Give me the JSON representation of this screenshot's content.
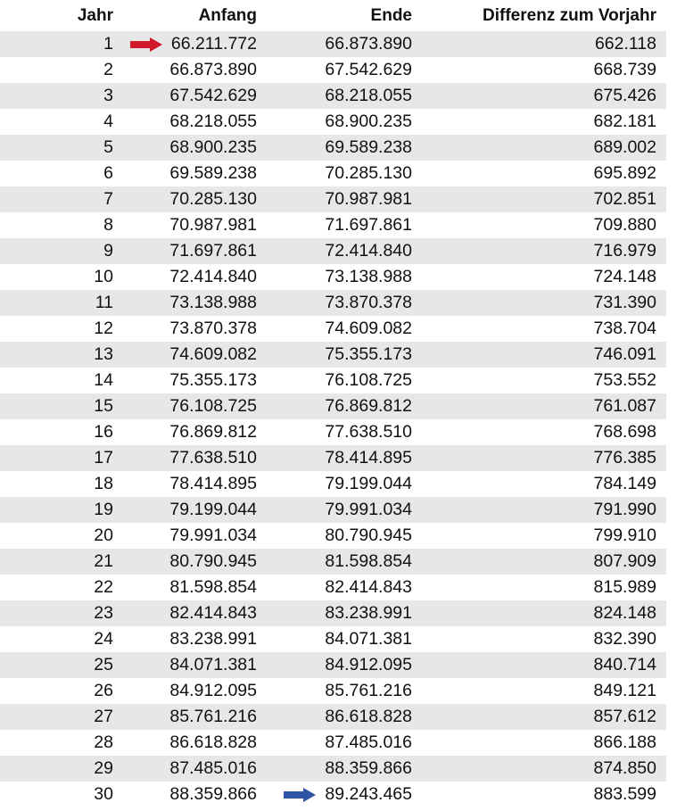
{
  "table": {
    "headers": [
      "Jahr",
      "Anfang",
      "Ende",
      "Differenz zum Vorjahr"
    ],
    "rows": [
      [
        "1",
        "66.211.772",
        "66.873.890",
        "662.118"
      ],
      [
        "2",
        "66.873.890",
        "67.542.629",
        "668.739"
      ],
      [
        "3",
        "67.542.629",
        "68.218.055",
        "675.426"
      ],
      [
        "4",
        "68.218.055",
        "68.900.235",
        "682.181"
      ],
      [
        "5",
        "68.900.235",
        "69.589.238",
        "689.002"
      ],
      [
        "6",
        "69.589.238",
        "70.285.130",
        "695.892"
      ],
      [
        "7",
        "70.285.130",
        "70.987.981",
        "702.851"
      ],
      [
        "8",
        "70.987.981",
        "71.697.861",
        "709.880"
      ],
      [
        "9",
        "71.697.861",
        "72.414.840",
        "716.979"
      ],
      [
        "10",
        "72.414.840",
        "73.138.988",
        "724.148"
      ],
      [
        "11",
        "73.138.988",
        "73.870.378",
        "731.390"
      ],
      [
        "12",
        "73.870.378",
        "74.609.082",
        "738.704"
      ],
      [
        "13",
        "74.609.082",
        "75.355.173",
        "746.091"
      ],
      [
        "14",
        "75.355.173",
        "76.108.725",
        "753.552"
      ],
      [
        "15",
        "76.108.725",
        "76.869.812",
        "761.087"
      ],
      [
        "16",
        "76.869.812",
        "77.638.510",
        "768.698"
      ],
      [
        "17",
        "77.638.510",
        "78.414.895",
        "776.385"
      ],
      [
        "18",
        "78.414.895",
        "79.199.044",
        "784.149"
      ],
      [
        "19",
        "79.199.044",
        "79.991.034",
        "791.990"
      ],
      [
        "20",
        "79.991.034",
        "80.790.945",
        "799.910"
      ],
      [
        "21",
        "80.790.945",
        "81.598.854",
        "807.909"
      ],
      [
        "22",
        "81.598.854",
        "82.414.843",
        "815.989"
      ],
      [
        "23",
        "82.414.843",
        "83.238.991",
        "824.148"
      ],
      [
        "24",
        "83.238.991",
        "84.071.381",
        "832.390"
      ],
      [
        "25",
        "84.071.381",
        "84.912.095",
        "840.714"
      ],
      [
        "26",
        "84.912.095",
        "85.761.216",
        "849.121"
      ],
      [
        "27",
        "85.761.216",
        "86.618.828",
        "857.612"
      ],
      [
        "28",
        "86.618.828",
        "87.485.016",
        "866.188"
      ],
      [
        "29",
        "87.485.016",
        "88.359.866",
        "874.850"
      ],
      [
        "30",
        "88.359.866",
        "89.243.465",
        "883.599"
      ]
    ],
    "striped_row_color": "#e7e7e7",
    "markers": [
      {
        "icon": "arrow-right-icon",
        "row": 1,
        "column": "Anfang",
        "color": "#d0192b"
      },
      {
        "icon": "arrow-right-icon",
        "row": 30,
        "column": "Ende",
        "color": "#2e55a5"
      }
    ]
  }
}
